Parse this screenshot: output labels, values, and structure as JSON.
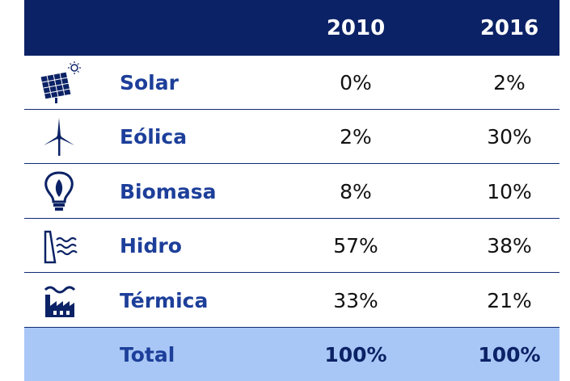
{
  "header": {
    "columns": [
      "2010",
      "2016"
    ]
  },
  "rows": [
    {
      "label": "Solar",
      "values": [
        "0%",
        "2%"
      ]
    },
    {
      "label": "Eólica",
      "values": [
        "2%",
        "30%"
      ]
    },
    {
      "label": "Biomasa",
      "values": [
        "8%",
        "10%"
      ]
    },
    {
      "label": "Hidro",
      "values": [
        "57%",
        "38%"
      ]
    },
    {
      "label": "Térmica",
      "values": [
        "33%",
        "21%"
      ]
    }
  ],
  "total": {
    "label": "Total",
    "values": [
      "100%",
      "100%"
    ]
  }
}
